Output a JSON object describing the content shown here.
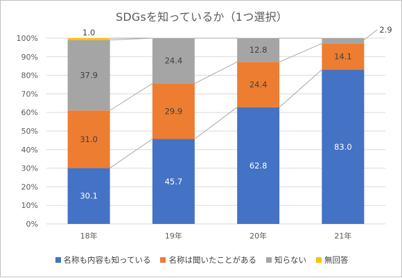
{
  "chart_data": {
    "type": "bar",
    "stacked": true,
    "percent": true,
    "title": "SDGsを知っているか（1つ選択）",
    "categories": [
      "18年",
      "19年",
      "20年",
      "21年"
    ],
    "ylim": [
      0,
      100
    ],
    "yticks": [
      "0%",
      "10%",
      "20%",
      "30%",
      "40%",
      "50%",
      "60%",
      "70%",
      "80%",
      "90%",
      "100%"
    ],
    "grid": true,
    "legend_position": "bottom",
    "series": [
      {
        "name": "名称も内容も知っている",
        "color": "#4472C4",
        "label_color": "#ffffff",
        "values": [
          30.1,
          45.7,
          62.8,
          83.0
        ]
      },
      {
        "name": "名称は聞いたことがある",
        "color": "#ED7D31",
        "label_color": "#404040",
        "values": [
          31.0,
          29.9,
          24.4,
          14.1
        ]
      },
      {
        "name": "知らない",
        "color": "#A5A5A5",
        "label_color": "#404040",
        "values": [
          37.9,
          24.4,
          12.8,
          2.9
        ]
      },
      {
        "name": "無回答",
        "color": "#FFC000",
        "label_color": "#404040",
        "values": [
          1.0,
          0.0,
          0.0,
          0.0
        ]
      }
    ],
    "data_labels": [
      [
        "30.1",
        "45.7",
        "62.8",
        "83.0"
      ],
      [
        "31.0",
        "29.9",
        "24.4",
        "14.1"
      ],
      [
        "37.9",
        "24.4",
        "12.8",
        "2.9"
      ],
      [
        "1.0",
        "",
        "",
        ""
      ]
    ]
  }
}
